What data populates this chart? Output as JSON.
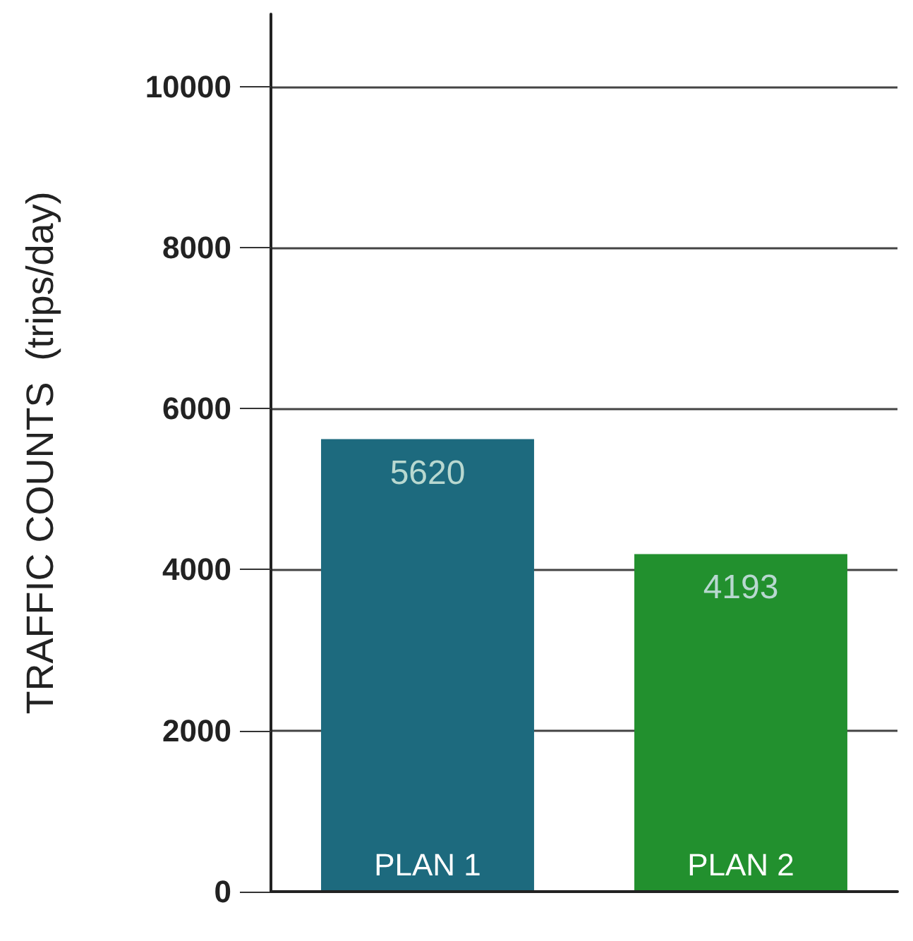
{
  "chart_data": {
    "type": "bar",
    "ylabel": "TRAFFIC COUNTS  (trips/day)",
    "categories": [
      "PLAN 1",
      "PLAN 2"
    ],
    "values": [
      5620,
      4193
    ],
    "colors": [
      "#1d6a7e",
      "#22902e"
    ],
    "ylim": [
      0,
      10900
    ],
    "yticks": [
      0,
      2000,
      4000,
      6000,
      8000,
      10000
    ],
    "grid": "y",
    "data_labels": true
  }
}
